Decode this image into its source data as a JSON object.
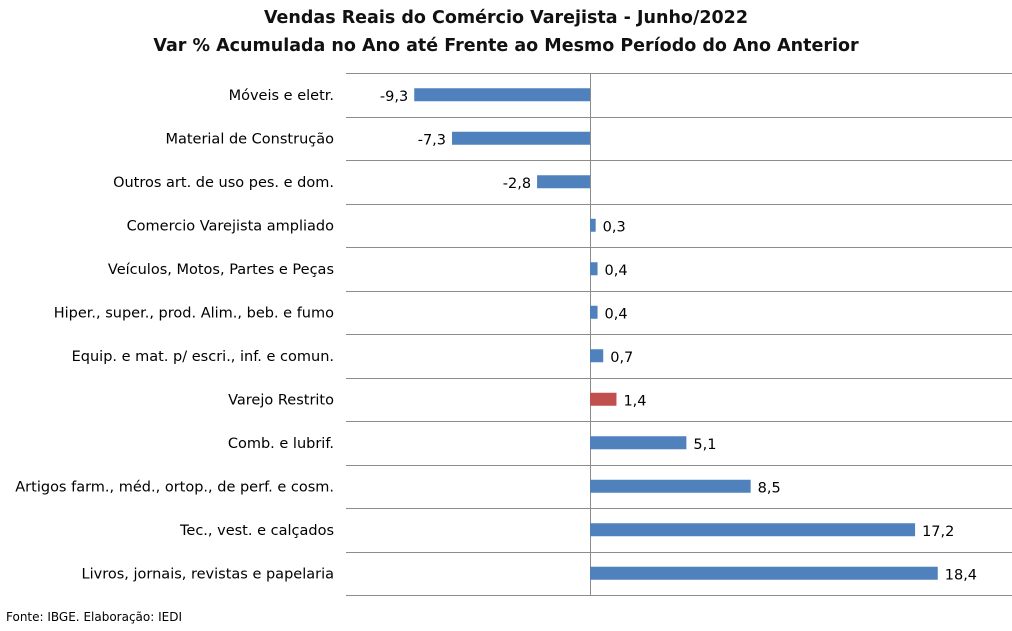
{
  "chart_data": {
    "type": "bar",
    "orientation": "horizontal",
    "title": "Vendas Reais do Comércio Varejista - Junho/2022",
    "subtitle": "Var % Acumulada no Ano até Frente ao Mesmo Período do Ano Anterior",
    "categories": [
      "Móveis e eletr.",
      "Material de Construção",
      "Outros art. de uso pes. e dom.",
      "Comercio Varejista ampliado",
      "Veículos, Motos, Partes e Peças",
      "Hiper., super., prod. Alim., beb. e fumo",
      "Equip. e mat. p/ escri., inf. e comun.",
      "Varejo Restrito",
      "Comb. e lubrif.",
      "Artigos farm., méd., ortop., de perf. e cosm.",
      "Tec., vest. e calçados",
      "Livros, jornais, revistas e papelaria"
    ],
    "values": [
      -9.3,
      -7.3,
      -2.8,
      0.3,
      0.4,
      0.4,
      0.7,
      1.4,
      5.1,
      8.5,
      17.2,
      18.4
    ],
    "value_labels": [
      "-9,3",
      "-7,3",
      "-2,8",
      "0,3",
      "0,4",
      "0,4",
      "0,7",
      "1,4",
      "5,1",
      "8,5",
      "17,2",
      "18,4"
    ],
    "highlight_category": "Varejo Restrito",
    "colors": {
      "default": "#4f81bd",
      "highlight": "#c0504d"
    },
    "xlim": [
      -10,
      20
    ],
    "grid": true,
    "legend": "none"
  },
  "source": "Fonte: IBGE. Elaboração: IEDI"
}
